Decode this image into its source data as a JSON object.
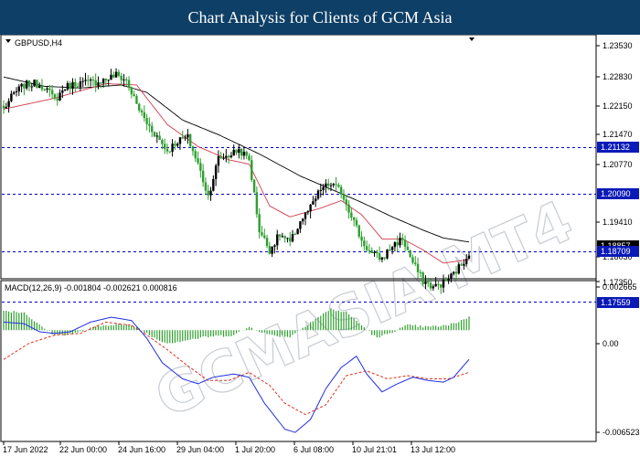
{
  "header": {
    "title": "Chart Analysis for Clients of GCM Asia"
  },
  "watermark": {
    "text": "GCMASIA MT4",
    "color": "#c7ccd3"
  },
  "colors": {
    "bull_candle": "#000000",
    "bear_candle": "#2e9e2e",
    "ma_fast": "#d23b4e",
    "ma_slow": "#000000",
    "level_line": "#0000cc",
    "price_tag_blue": "#0a1ab8",
    "macd_hist": "#2e9e2e",
    "macd_main": "#1f2fe0",
    "macd_signal": "#e03020"
  },
  "main_panel": {
    "symbol_label": "GBPUSD,H4",
    "price_axis_ticks": [
      "1.23530",
      "1.22830",
      "1.22150",
      "1.21470",
      "1.20770",
      "1.19410",
      "1.18030",
      "1.17350"
    ],
    "price_tags": [
      {
        "label": "1.21132",
        "style": "blue"
      },
      {
        "label": "1.20090",
        "style": "blue"
      },
      {
        "label": "1.18857",
        "style": "black"
      },
      {
        "label": "1.18709",
        "style": "blue"
      },
      {
        "label": "1.17559",
        "style": "blue"
      }
    ],
    "horizontal_levels": [
      1.21132,
      1.2009,
      1.18709,
      1.17559
    ]
  },
  "macd_panel": {
    "label": "MACD(12,26,9) -0.001804 -0.002621 0.000816",
    "axis_ticks": [
      "0.002665",
      "0.00",
      "-0.006523"
    ]
  },
  "time_axis": {
    "ticks": [
      "17 Jun 2022",
      "22 Jun 00:00",
      "24 Jun 16:00",
      "29 Jun 04:00",
      "1 Jul 20:00",
      "6 Jul 08:00",
      "10 Jul 21:01",
      "13 Jul 12:00"
    ]
  },
  "chart_data": {
    "type": "candlestick",
    "symbol": "GBPUSD",
    "timeframe": "H4",
    "y_range": [
      1.1735,
      1.2375
    ],
    "close_anchors": [
      [
        0,
        1.221
      ],
      [
        4,
        1.2245
      ],
      [
        8,
        1.2265
      ],
      [
        12,
        1.2268
      ],
      [
        16,
        1.2262
      ],
      [
        20,
        1.223
      ],
      [
        24,
        1.226
      ],
      [
        28,
        1.2268
      ],
      [
        32,
        1.227
      ],
      [
        36,
        1.2272
      ],
      [
        40,
        1.2278
      ],
      [
        44,
        1.2288
      ],
      [
        48,
        1.2275
      ],
      [
        52,
        1.222
      ],
      [
        56,
        1.2178
      ],
      [
        60,
        1.2148
      ],
      [
        64,
        1.2115
      ],
      [
        68,
        1.2138
      ],
      [
        72,
        1.2145
      ],
      [
        76,
        1.2085
      ],
      [
        80,
        1.2012
      ],
      [
        84,
        1.2098
      ],
      [
        88,
        1.2105
      ],
      [
        92,
        1.2118
      ],
      [
        96,
        1.2095
      ],
      [
        100,
        1.1935
      ],
      [
        104,
        1.189
      ],
      [
        108,
        1.1925
      ],
      [
        112,
        1.1905
      ],
      [
        116,
        1.1955
      ],
      [
        120,
        1.1985
      ],
      [
        124,
        1.2028
      ],
      [
        128,
        1.204
      ],
      [
        132,
        1.2022
      ],
      [
        136,
        1.197
      ],
      [
        140,
        1.191
      ],
      [
        144,
        1.188
      ],
      [
        148,
        1.187
      ],
      [
        152,
        1.19
      ],
      [
        156,
        1.1915
      ],
      [
        160,
        1.186
      ],
      [
        164,
        1.182
      ],
      [
        168,
        1.1805
      ],
      [
        172,
        1.1815
      ],
      [
        176,
        1.1835
      ],
      [
        180,
        1.1865
      ],
      [
        182,
        1.1885
      ]
    ],
    "ma_fast_anchors": [
      [
        0,
        1.221
      ],
      [
        20,
        1.2235
      ],
      [
        40,
        1.2268
      ],
      [
        52,
        1.2265
      ],
      [
        64,
        1.2175
      ],
      [
        76,
        1.2125
      ],
      [
        88,
        1.2095
      ],
      [
        96,
        1.2085
      ],
      [
        104,
        1.199
      ],
      [
        112,
        1.1965
      ],
      [
        124,
        1.1985
      ],
      [
        132,
        1.2002
      ],
      [
        140,
        1.197
      ],
      [
        148,
        1.1915
      ],
      [
        156,
        1.1915
      ],
      [
        164,
        1.189
      ],
      [
        172,
        1.186
      ],
      [
        182,
        1.1868
      ]
    ],
    "ma_slow_anchors": [
      [
        0,
        1.2283
      ],
      [
        16,
        1.2262
      ],
      [
        30,
        1.2258
      ],
      [
        46,
        1.2265
      ],
      [
        56,
        1.2248
      ],
      [
        70,
        1.2185
      ],
      [
        84,
        1.2152
      ],
      [
        100,
        1.2108
      ],
      [
        116,
        1.2058
      ],
      [
        128,
        1.2028
      ],
      [
        140,
        1.1998
      ],
      [
        152,
        1.1965
      ],
      [
        164,
        1.1935
      ],
      [
        172,
        1.1917
      ],
      [
        182,
        1.1908
      ]
    ],
    "macd": {
      "y_range": [
        -0.0068,
        0.003
      ],
      "main": -0.001804,
      "signal": -0.002621,
      "histogram": 0.000816,
      "main_anchors": [
        [
          0,
          0.0005
        ],
        [
          8,
          0.0004
        ],
        [
          14,
          -0.0001
        ],
        [
          20,
          -0.0002
        ],
        [
          26,
          -0.0001
        ],
        [
          34,
          0.0005
        ],
        [
          42,
          0.0008
        ],
        [
          50,
          0.0006
        ],
        [
          56,
          -0.0005
        ],
        [
          62,
          -0.002
        ],
        [
          70,
          -0.003
        ],
        [
          76,
          -0.0033
        ],
        [
          82,
          -0.0029
        ],
        [
          90,
          -0.0027
        ],
        [
          96,
          -0.0029
        ],
        [
          102,
          -0.0045
        ],
        [
          110,
          -0.0061
        ],
        [
          114,
          -0.0063
        ],
        [
          120,
          -0.0055
        ],
        [
          126,
          -0.0036
        ],
        [
          132,
          -0.0023
        ],
        [
          138,
          -0.0016
        ],
        [
          142,
          -0.0027
        ],
        [
          148,
          -0.0038
        ],
        [
          154,
          -0.0033
        ],
        [
          160,
          -0.0029
        ],
        [
          166,
          -0.0031
        ],
        [
          172,
          -0.0032
        ],
        [
          176,
          -0.0029
        ],
        [
          182,
          -0.0018
        ]
      ],
      "signal_anchors": [
        [
          0,
          -0.0018
        ],
        [
          10,
          -0.0008
        ],
        [
          20,
          -0.0003
        ],
        [
          30,
          -0.0002
        ],
        [
          40,
          0.0005
        ],
        [
          50,
          0.0003
        ],
        [
          56,
          -0.0003
        ],
        [
          64,
          -0.0012
        ],
        [
          72,
          -0.0022
        ],
        [
          80,
          -0.0031
        ],
        [
          88,
          -0.0031
        ],
        [
          96,
          -0.0026
        ],
        [
          104,
          -0.0034
        ],
        [
          110,
          -0.0045
        ],
        [
          118,
          -0.0052
        ],
        [
          126,
          -0.0046
        ],
        [
          134,
          -0.0028
        ],
        [
          142,
          -0.0025
        ],
        [
          150,
          -0.003
        ],
        [
          158,
          -0.0028
        ],
        [
          166,
          -0.003
        ],
        [
          174,
          -0.003
        ],
        [
          182,
          -0.0026
        ]
      ],
      "histogram_anchors": [
        [
          0,
          0.0012
        ],
        [
          8,
          0.0011
        ],
        [
          14,
          0.0003
        ],
        [
          20,
          -0.0003
        ],
        [
          28,
          -0.0002
        ],
        [
          36,
          0.0002
        ],
        [
          44,
          0.0004
        ],
        [
          52,
          0.0002
        ],
        [
          58,
          -0.0004
        ],
        [
          64,
          -0.0008
        ],
        [
          72,
          -0.0006
        ],
        [
          80,
          -0.0004
        ],
        [
          90,
          -0.0003
        ],
        [
          96,
          0.0002
        ],
        [
          104,
          -0.0003
        ],
        [
          112,
          -0.0004
        ],
        [
          120,
          0.0005
        ],
        [
          128,
          0.0013
        ],
        [
          134,
          0.0011
        ],
        [
          140,
          0.0003
        ],
        [
          146,
          -0.0005
        ],
        [
          152,
          -0.0001
        ],
        [
          158,
          0.0003
        ],
        [
          166,
          0.0002
        ],
        [
          174,
          0.0003
        ],
        [
          182,
          0.0008
        ]
      ]
    }
  }
}
